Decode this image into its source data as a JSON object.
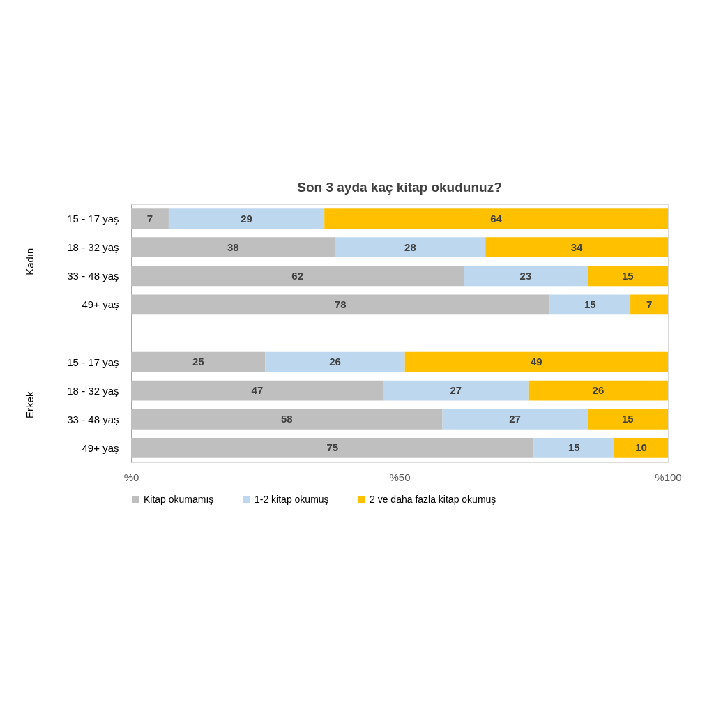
{
  "chart_data": {
    "type": "bar",
    "orientation": "horizontal",
    "stacked": true,
    "title": "Son 3 ayda kaç kitap okudunuz?",
    "categories": [
      "15 - 17 yaş",
      "18 - 32 yaş",
      "33 - 48 yaş",
      "49+ yaş",
      null,
      "15 - 17 yaş",
      "18 - 32 yaş",
      "33 - 48 yaş",
      "49+ yaş"
    ],
    "series": [
      {
        "name": "Kitap okumamış",
        "color": "#bfbfbf",
        "values": [
          7,
          38,
          62,
          78,
          null,
          25,
          47,
          58,
          75
        ]
      },
      {
        "name": "1-2 kitap okumuş",
        "color": "#bdd7ee",
        "values": [
          29,
          28,
          23,
          15,
          null,
          26,
          27,
          27,
          15
        ]
      },
      {
        "name": "2 ve daha fazla kitap okumuş",
        "color": "#ffc000",
        "values": [
          64,
          34,
          15,
          7,
          null,
          49,
          26,
          15,
          10
        ]
      }
    ],
    "annotations": [
      "Kadın",
      "Erkek"
    ],
    "xlim": [
      0,
      100
    ],
    "xticks": [
      {
        "value": 0,
        "label": "%0"
      },
      {
        "value": 50,
        "label": "%50"
      },
      {
        "value": 100,
        "label": "%100"
      }
    ],
    "grid": "x",
    "legend": "bottom",
    "data_labels": true
  }
}
